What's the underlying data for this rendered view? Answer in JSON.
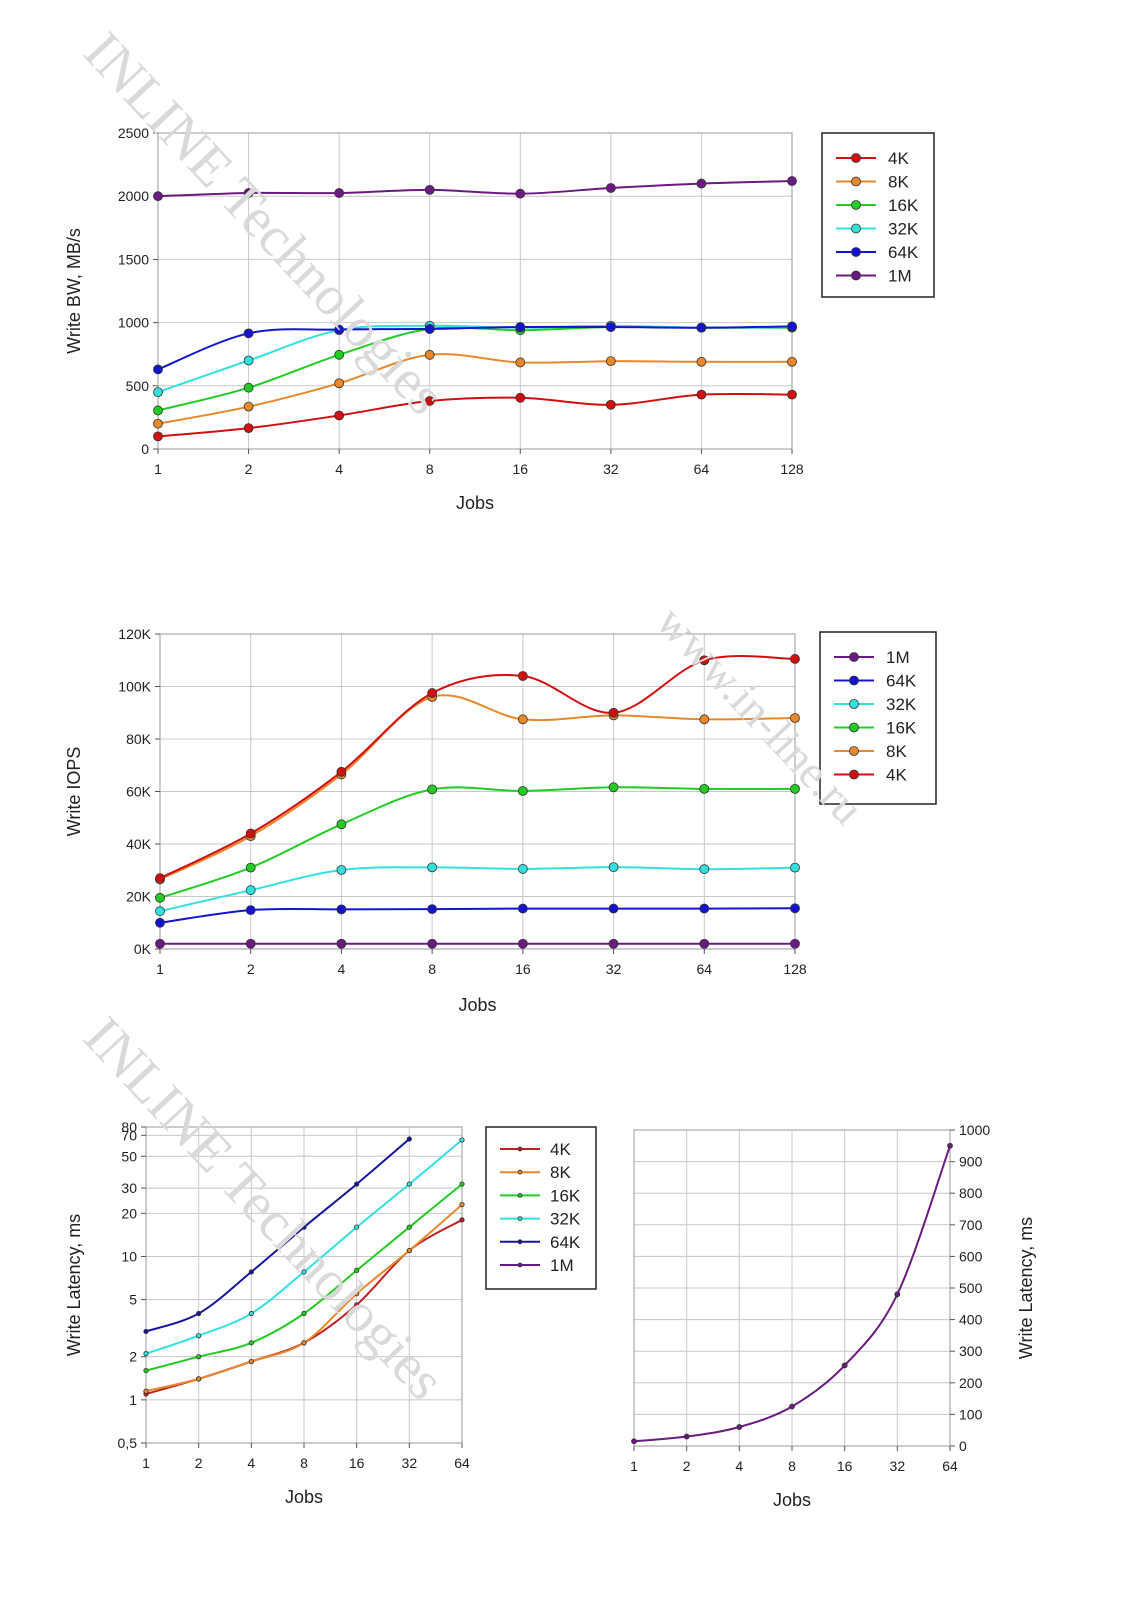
{
  "watermarks": [
    "INLINE Technologies",
    "www.in-line.ru",
    "INLINE Technologies"
  ],
  "chart_data": [
    {
      "type": "line",
      "xlabel": "Jobs",
      "ylabel": "Write BW, MB/s",
      "x_scale": "log2",
      "x": [
        1,
        2,
        4,
        8,
        16,
        32,
        64,
        128
      ],
      "x_ticks": [
        "1",
        "2",
        "4",
        "8",
        "16",
        "32",
        "64",
        "128"
      ],
      "ylim": [
        0,
        2500
      ],
      "y_ticks": [
        "0",
        "500",
        "1000",
        "1500",
        "2000",
        "2500"
      ],
      "grid": true,
      "legend": "right",
      "series": [
        {
          "name": "4K",
          "color": "#d01010",
          "values": [
            100,
            165,
            265,
            380,
            405,
            350,
            430,
            430
          ]
        },
        {
          "name": "8K",
          "color": "#e8882a",
          "values": [
            200,
            335,
            520,
            745,
            685,
            695,
            690,
            690
          ]
        },
        {
          "name": "16K",
          "color": "#22cc22",
          "values": [
            305,
            485,
            745,
            950,
            940,
            965,
            960,
            960
          ]
        },
        {
          "name": "32K",
          "color": "#33e0e0",
          "values": [
            450,
            700,
            940,
            975,
            960,
            975,
            960,
            965
          ]
        },
        {
          "name": "64K",
          "color": "#1414d0",
          "values": [
            630,
            915,
            945,
            950,
            965,
            965,
            960,
            970
          ]
        },
        {
          "name": "1M",
          "color": "#6a1a80",
          "values": [
            2000,
            2025,
            2025,
            2050,
            2020,
            2065,
            2100,
            2120
          ]
        }
      ]
    },
    {
      "type": "line",
      "xlabel": "Jobs",
      "ylabel": "Write IOPS",
      "x_scale": "log2",
      "x": [
        1,
        2,
        4,
        8,
        16,
        32,
        64,
        128
      ],
      "x_ticks": [
        "1",
        "2",
        "4",
        "8",
        "16",
        "32",
        "64",
        "128"
      ],
      "ylim": [
        0,
        120000
      ],
      "y_ticks": [
        "0K",
        "20K",
        "40K",
        "60K",
        "80K",
        "100K",
        "120K"
      ],
      "grid": true,
      "legend": "right",
      "series": [
        {
          "name": "1M",
          "color": "#6a1a80",
          "values": [
            2000,
            2000,
            2000,
            2000,
            2000,
            2000,
            2000,
            2000
          ]
        },
        {
          "name": "64K",
          "color": "#1414d0",
          "values": [
            10000,
            14800,
            15100,
            15200,
            15400,
            15400,
            15400,
            15500
          ]
        },
        {
          "name": "32K",
          "color": "#33e0e0",
          "values": [
            14400,
            22400,
            30100,
            31100,
            30500,
            31200,
            30400,
            31000
          ]
        },
        {
          "name": "16K",
          "color": "#22cc22",
          "values": [
            19500,
            31000,
            47500,
            60800,
            60200,
            61600,
            61000,
            61000
          ]
        },
        {
          "name": "8K",
          "color": "#e8882a",
          "values": [
            26500,
            43000,
            66500,
            96000,
            87500,
            89000,
            87500,
            88000
          ]
        },
        {
          "name": "4K",
          "color": "#d01010",
          "values": [
            27000,
            44000,
            67500,
            97500,
            104000,
            90000,
            110000,
            110500
          ]
        }
      ]
    },
    {
      "type": "line",
      "xlabel": "Jobs",
      "ylabel": "Write Latency, ms",
      "x_scale": "log2",
      "y_scale": "log",
      "x": [
        1,
        2,
        4,
        8,
        16,
        32,
        64
      ],
      "x_ticks": [
        "1",
        "2",
        "4",
        "8",
        "16",
        "32",
        "64"
      ],
      "ylim": [
        0.5,
        80
      ],
      "y_ticks": [
        "0,5",
        "1",
        "2",
        "5",
        "10",
        "20",
        "30",
        "50",
        "70",
        "80"
      ],
      "y_tick_values": [
        0.5,
        1,
        2,
        5,
        10,
        20,
        30,
        50,
        70,
        80
      ],
      "grid": true,
      "legend": "right",
      "series": [
        {
          "name": "4K",
          "color": "#c02020",
          "values": [
            1.1,
            1.4,
            1.85,
            2.5,
            4.6,
            11,
            18
          ]
        },
        {
          "name": "8K",
          "color": "#e8882a",
          "values": [
            1.15,
            1.4,
            1.85,
            2.5,
            5.5,
            11,
            23
          ]
        },
        {
          "name": "16K",
          "color": "#22cc22",
          "values": [
            1.6,
            2.0,
            2.5,
            4.0,
            8.0,
            16,
            32
          ]
        },
        {
          "name": "32K",
          "color": "#33e0e0",
          "values": [
            2.1,
            2.8,
            4.0,
            7.8,
            16,
            32,
            65
          ]
        },
        {
          "name": "64K",
          "color": "#1414a0",
          "values": [
            3.0,
            4.0,
            7.8,
            16,
            32,
            66,
            null
          ]
        },
        {
          "name": "1M",
          "color": "#6a1a80",
          "values": [
            null,
            null,
            null,
            null,
            null,
            null,
            null
          ]
        }
      ]
    },
    {
      "type": "line",
      "xlabel": "Jobs",
      "ylabel": "Write Latency, ms",
      "x_scale": "log2",
      "x": [
        1,
        2,
        4,
        8,
        16,
        32,
        64
      ],
      "x_ticks": [
        "1",
        "2",
        "4",
        "8",
        "16",
        "32",
        "64"
      ],
      "ylim": [
        0,
        1000
      ],
      "y_ticks": [
        "0",
        "100",
        "200",
        "300",
        "400",
        "500",
        "600",
        "700",
        "800",
        "900",
        "1000"
      ],
      "y_axis_side": "right",
      "grid": true,
      "series": [
        {
          "color": "#6a1a80",
          "values": [
            15,
            30,
            60,
            125,
            255,
            480,
            950
          ]
        }
      ]
    }
  ]
}
